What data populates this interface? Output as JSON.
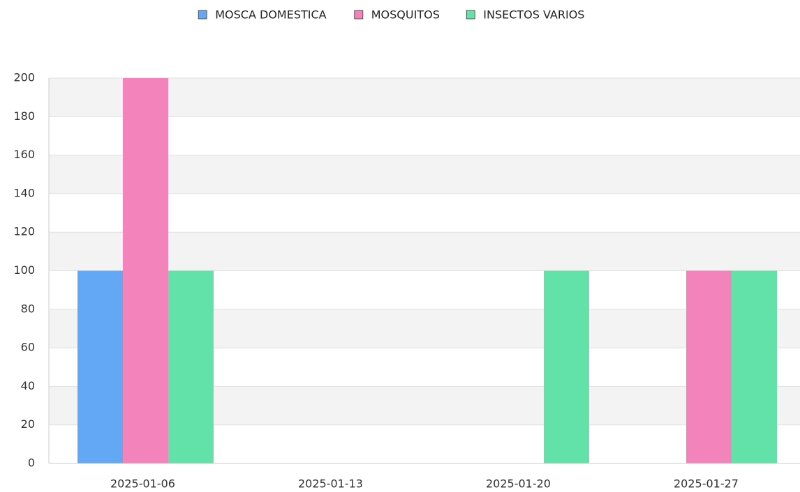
{
  "chart_data": {
    "type": "bar",
    "categories": [
      "2025-01-06",
      "2025-01-13",
      "2025-01-20",
      "2025-01-27"
    ],
    "series": [
      {
        "name": "MOSCA DOMESTICA",
        "color": "#62a8f5",
        "values": [
          100,
          0,
          0,
          0
        ]
      },
      {
        "name": "MOSQUITOS",
        "color": "#f384bb",
        "values": [
          200,
          0,
          0,
          100
        ]
      },
      {
        "name": "INSECTOS VARIOS",
        "color": "#62e2a8",
        "values": [
          100,
          0,
          100,
          100
        ]
      }
    ],
    "ylim": [
      0,
      200
    ],
    "yticks": [
      0,
      20,
      40,
      60,
      80,
      100,
      120,
      140,
      160,
      180,
      200
    ],
    "grid": true,
    "legend": "top"
  }
}
